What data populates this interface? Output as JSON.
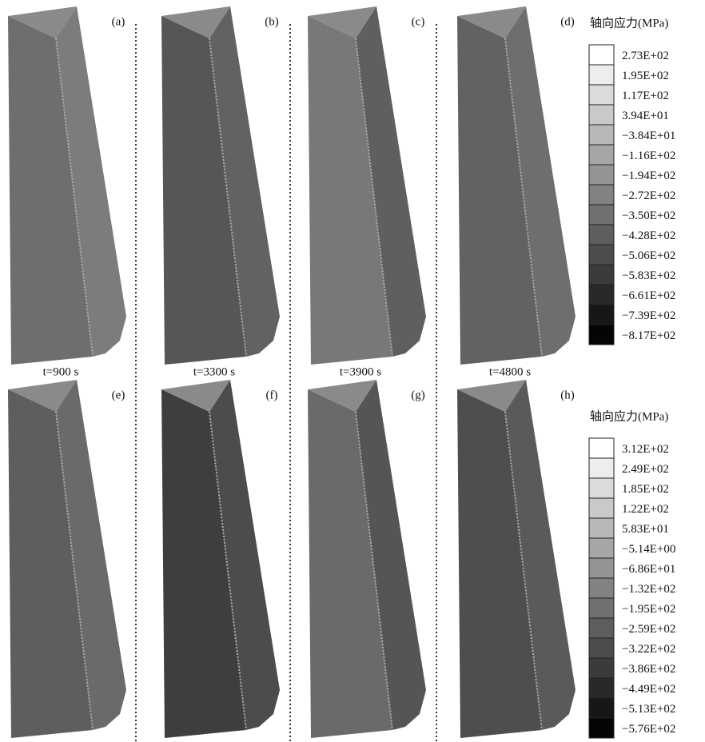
{
  "panels": [
    {
      "label": "(a)"
    },
    {
      "label": "(b)"
    },
    {
      "label": "(c)"
    },
    {
      "label": "(d)"
    },
    {
      "label": "(e)"
    },
    {
      "label": "(f)"
    },
    {
      "label": "(g)"
    },
    {
      "label": "(h)"
    }
  ],
  "times": [
    "t=900 s",
    "t=3300 s",
    "t=3900 s",
    "t=4800 s"
  ],
  "legends": [
    {
      "title": "轴向应力(MPa)",
      "entries": [
        "2.73E+02",
        "1.95E+02",
        "1.17E+02",
        "3.94E+01",
        "−3.84E+01",
        "−1.16E+02",
        "−1.94E+02",
        "−2.72E+02",
        "−3.50E+02",
        "−4.28E+02",
        "−5.06E+02",
        "−5.83E+02",
        "−6.61E+02",
        "−7.39E+02",
        "−8.17E+02"
      ]
    },
    {
      "title": "轴向应力(MPa)",
      "entries": [
        "3.12E+02",
        "2.49E+02",
        "1.85E+02",
        "1.22E+02",
        "5.83E+01",
        "−5.14E+00",
        "−6.86E+01",
        "−1.32E+02",
        "−1.95E+02",
        "−2.59E+02",
        "−3.22E+02",
        "−3.86E+02",
        "−4.49E+02",
        "−5.13E+02",
        "−5.76E+02"
      ]
    }
  ]
}
